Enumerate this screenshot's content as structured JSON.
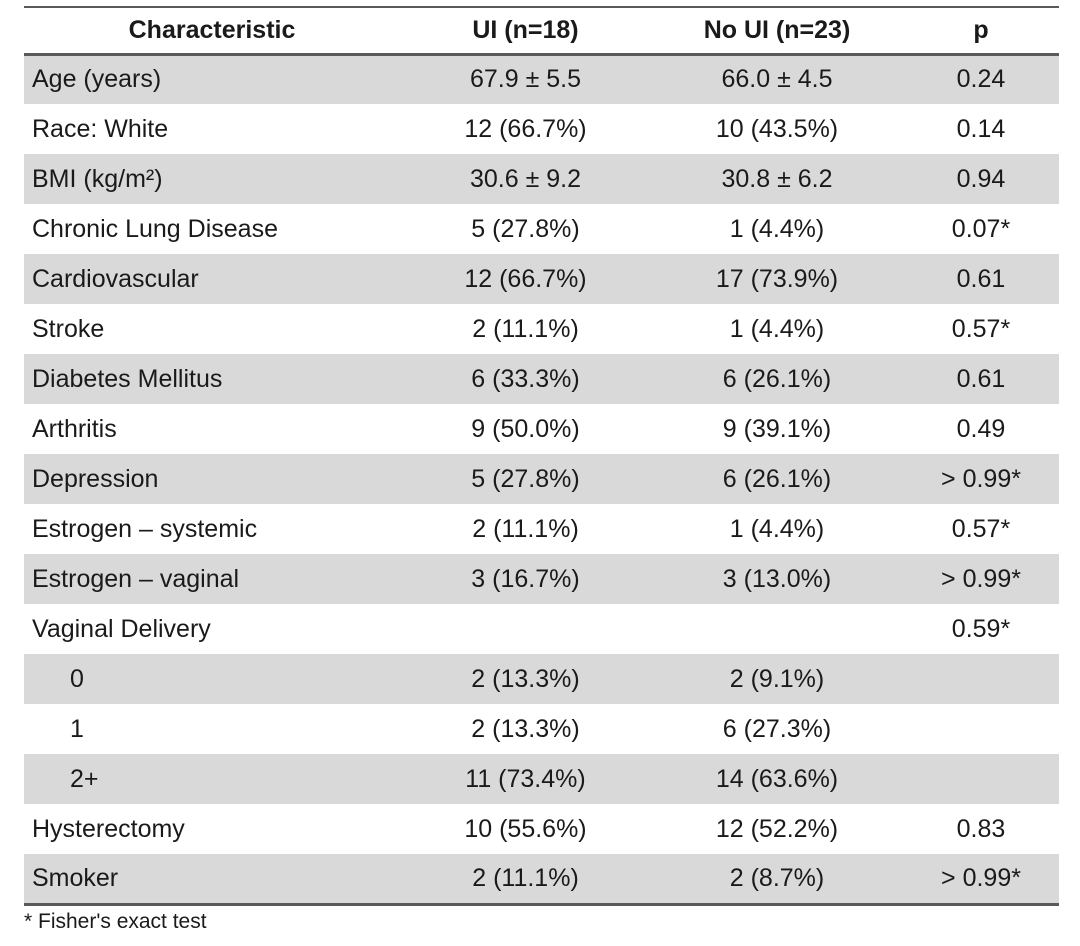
{
  "table": {
    "headers": [
      "Characteristic",
      "UI (n=18)",
      "No UI (n=23)",
      "p"
    ],
    "rows": [
      {
        "label": "Age (years)",
        "ui": "67.9 ± 5.5",
        "noui": "66.0 ± 4.5",
        "p": "0.24",
        "shaded": true,
        "sub": false
      },
      {
        "label": "Race: White",
        "ui": "12 (66.7%)",
        "noui": "10 (43.5%)",
        "p": "0.14",
        "shaded": false,
        "sub": false
      },
      {
        "label": "BMI  (kg/m²)",
        "ui": "30.6 ± 9.2",
        "noui": "30.8 ± 6.2",
        "p": "0.94",
        "shaded": true,
        "sub": false
      },
      {
        "label": "Chronic Lung Disease",
        "ui": "5 (27.8%)",
        "noui": "1 (4.4%)",
        "p": "0.07*",
        "shaded": false,
        "sub": false
      },
      {
        "label": "Cardiovascular",
        "ui": "12 (66.7%)",
        "noui": "17 (73.9%)",
        "p": "0.61",
        "shaded": true,
        "sub": false
      },
      {
        "label": "Stroke",
        "ui": "2 (11.1%)",
        "noui": "1 (4.4%)",
        "p": "0.57*",
        "shaded": false,
        "sub": false
      },
      {
        "label": "Diabetes Mellitus",
        "ui": "6 (33.3%)",
        "noui": "6 (26.1%)",
        "p": "0.61",
        "shaded": true,
        "sub": false
      },
      {
        "label": "Arthritis",
        "ui": "9 (50.0%)",
        "noui": "9 (39.1%)",
        "p": "0.49",
        "shaded": false,
        "sub": false
      },
      {
        "label": "Depression",
        "ui": "5 (27.8%)",
        "noui": "6 (26.1%)",
        "p": "> 0.99*",
        "shaded": true,
        "sub": false
      },
      {
        "label": "Estrogen – systemic",
        "ui": "2 (11.1%)",
        "noui": "1 (4.4%)",
        "p": "0.57*",
        "shaded": false,
        "sub": false
      },
      {
        "label": "Estrogen – vaginal",
        "ui": "3 (16.7%)",
        "noui": "3 (13.0%)",
        "p": "> 0.99*",
        "shaded": true,
        "sub": false
      },
      {
        "label": "Vaginal Delivery",
        "ui": "",
        "noui": "",
        "p": "0.59*",
        "shaded": false,
        "sub": false
      },
      {
        "label": "0",
        "ui": "2 (13.3%)",
        "noui": "2 (9.1%)",
        "p": "",
        "shaded": true,
        "sub": true
      },
      {
        "label": "1",
        "ui": "2 (13.3%)",
        "noui": "6 (27.3%)",
        "p": "",
        "shaded": false,
        "sub": true
      },
      {
        "label": "2+",
        "ui": "11 (73.4%)",
        "noui": "14 (63.6%)",
        "p": "",
        "shaded": true,
        "sub": true
      },
      {
        "label": "Hysterectomy",
        "ui": "10 (55.6%)",
        "noui": "12 (52.2%)",
        "p": "0.83",
        "shaded": false,
        "sub": false
      },
      {
        "label": "Smoker",
        "ui": "2 (11.1%)",
        "noui": "2 (8.7%)",
        "p": "> 0.99*",
        "shaded": true,
        "sub": false
      }
    ]
  },
  "footnote": "* Fisher's exact test"
}
